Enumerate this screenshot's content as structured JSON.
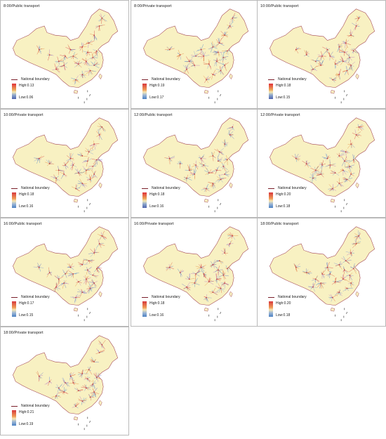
{
  "figure": {
    "background": "#ffffff",
    "land_color": "#f8f1c2",
    "boundary_color": "#a34654",
    "legend_boundary_label": "National boundary"
  },
  "panels": [
    {
      "title": "8:00/Public transport",
      "high": "High:0.13",
      "low": "Low:0.06",
      "ramp": "a"
    },
    {
      "title": "8:00/Private transport",
      "high": "High:0.19",
      "low": "Low:0.17",
      "ramp": "b"
    },
    {
      "title": "10:00/Public transport",
      "high": "High:0.18",
      "low": "Low:0.15",
      "ramp": "a"
    },
    {
      "title": "10:00/Private transport",
      "high": "High:0.18",
      "low": "Low:0.16",
      "ramp": "b"
    },
    {
      "title": "12:00/Public transport",
      "high": "High:0.18",
      "low": "Low:0.16",
      "ramp": "a"
    },
    {
      "title": "12:00/Private transport",
      "high": "High:0.20",
      "low": "Low:0.18",
      "ramp": "b"
    },
    {
      "title": "16:00/Public transport",
      "high": "High:0.17",
      "low": "Low:0.15",
      "ramp": "b"
    },
    {
      "title": "16:00/Private transport",
      "high": "High:0.18",
      "low": "Low:0.16",
      "ramp": "b"
    },
    {
      "title": "18:00/Public transport",
      "high": "High:0.20",
      "low": "Low:0.18",
      "ramp": "b"
    },
    {
      "title": "18:00/Private transport",
      "high": "High:0.21",
      "low": "Low:0.19",
      "ramp": "b"
    }
  ]
}
